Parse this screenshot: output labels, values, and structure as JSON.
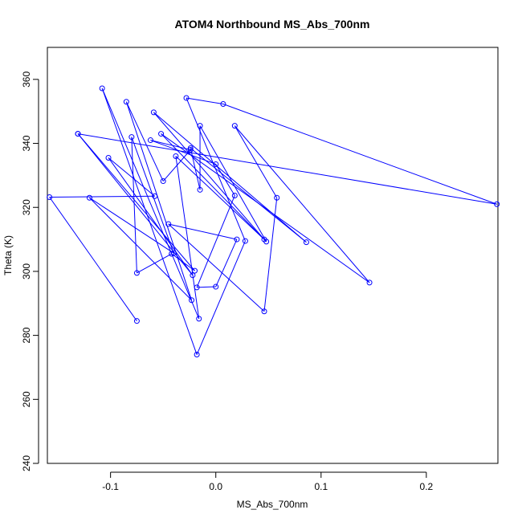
{
  "chart_data": {
    "type": "line",
    "title": "ATOM4 Northbound MS_Abs_700nm",
    "xlabel": "MS_Abs_700nm",
    "ylabel": "Theta (K)",
    "xlim": [
      -0.16,
      0.268
    ],
    "ylim": [
      240,
      370
    ],
    "xticks": [
      -0.1,
      0.0,
      0.1,
      0.2
    ],
    "xtick_labels": [
      "-0.1",
      "0.0",
      "0.1",
      "0.2"
    ],
    "yticks": [
      240,
      260,
      280,
      300,
      320,
      340,
      360
    ],
    "ytick_labels": [
      "240",
      "260",
      "280",
      "300",
      "320",
      "340",
      "360"
    ],
    "grid": false,
    "color": "#0000ff",
    "series": [
      {
        "points": [
          [
            -0.075,
            284.5
          ],
          [
            -0.158,
            323.2
          ],
          [
            -0.058,
            323.5
          ],
          [
            -0.102,
            335.5
          ],
          [
            -0.022,
            298.8
          ],
          [
            -0.131,
            343.0
          ],
          [
            -0.02,
            300.2
          ],
          [
            -0.042,
            305.5
          ],
          [
            -0.075,
            299.5
          ],
          [
            -0.08,
            342.0
          ],
          [
            -0.04,
            305.7
          ],
          [
            -0.12,
            323.0
          ],
          [
            -0.023,
            291.0
          ],
          [
            -0.085,
            353.0
          ],
          [
            -0.05,
            328.2
          ],
          [
            -0.024,
            338.0
          ],
          [
            -0.062,
            341.0
          ],
          [
            0.0,
            333.5
          ],
          [
            0.018,
            323.7
          ],
          [
            -0.018,
            295.0
          ],
          [
            0.0,
            295.2
          ],
          [
            0.02,
            310.0
          ],
          [
            -0.045,
            314.8
          ],
          [
            0.046,
            287.5
          ],
          [
            0.058,
            323.0
          ],
          [
            0.018,
            345.5
          ],
          [
            0.146,
            296.5
          ],
          [
            -0.052,
            343.0
          ],
          [
            0.048,
            309.3
          ],
          [
            -0.015,
            345.5
          ],
          [
            -0.015,
            325.5
          ],
          [
            -0.024,
            338.5
          ],
          [
            0.086,
            309.1
          ],
          [
            -0.059,
            349.7
          ],
          [
            0.046,
            310.0
          ],
          [
            -0.038,
            336.0
          ],
          [
            -0.016,
            285.2
          ],
          [
            -0.108,
            357.2
          ],
          [
            -0.018,
            274.0
          ],
          [
            0.028,
            309.5
          ],
          [
            -0.028,
            354.2
          ],
          [
            0.007,
            352.3
          ],
          [
            0.267,
            321.0
          ],
          [
            -0.131,
            343.0
          ]
        ]
      }
    ]
  }
}
